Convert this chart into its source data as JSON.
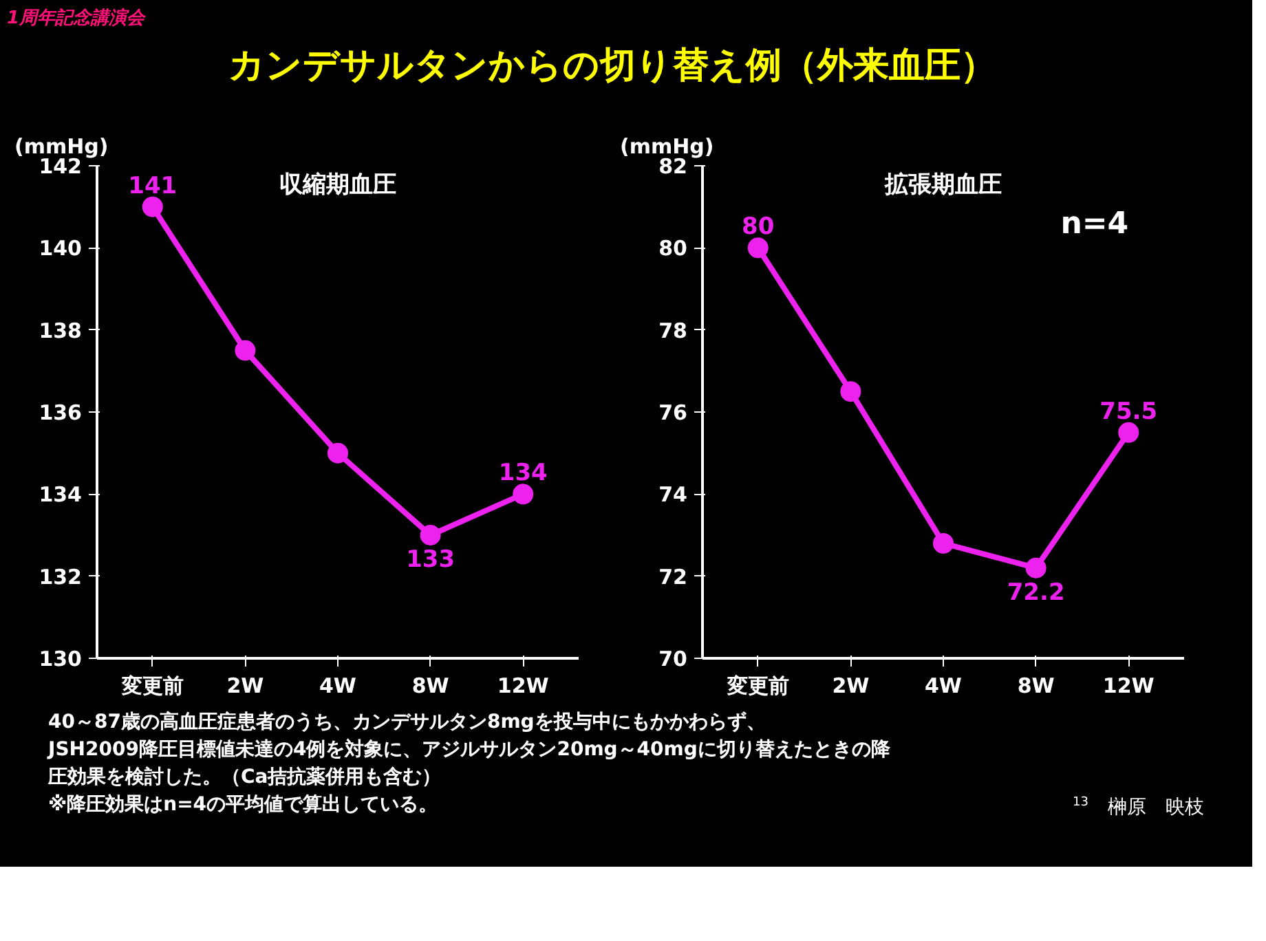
{
  "chart_data": [
    {
      "type": "line",
      "title": "カンデサルタンからの切り替え例（外来血圧）",
      "subtitle": "収縮期血圧",
      "ylabel": "(mmHg)",
      "annotations": [
        "1周年記念講演会"
      ],
      "categories": [
        "変更前",
        "2W",
        "4W",
        "8W",
        "12W"
      ],
      "series": [
        {
          "color": "#ee22ee",
          "values": [
            141,
            137.5,
            135,
            133,
            134
          ],
          "value_labels": [
            "141",
            null,
            null,
            "133",
            "134"
          ]
        }
      ],
      "ylim": [
        130,
        142
      ],
      "yticks": [
        130,
        132,
        134,
        136,
        138,
        140,
        142
      ],
      "grid": false,
      "marker": "circle",
      "line_style": "solid"
    },
    {
      "type": "line",
      "subtitle": "拡張期血圧",
      "ylabel": "(mmHg)",
      "annotations": [
        "n=4",
        "40～87歳の高血圧症患者のうち、カンデサルタン8mgを投与中にもかかわらず、",
        "JSH2009降圧目標値未達の4例を対象に、アジルサルタン20mg～40mgに切り替えたときの降",
        "圧効果を検討した。（Ca拮抗薬併用も含む）",
        "※降圧効果はn=4の平均値で算出している。",
        "13",
        "榊原　映枝"
      ],
      "categories": [
        "変更前",
        "2W",
        "4W",
        "8W",
        "12W"
      ],
      "series": [
        {
          "color": "#ee22ee",
          "values": [
            80,
            76.5,
            72.8,
            72.2,
            75.5
          ],
          "value_labels": [
            "80",
            null,
            null,
            "72.2",
            "75.5"
          ]
        }
      ],
      "ylim": [
        70,
        82
      ],
      "yticks": [
        70,
        72,
        74,
        76,
        78,
        80,
        82
      ],
      "grid": false,
      "marker": "circle",
      "line_style": "solid"
    }
  ]
}
